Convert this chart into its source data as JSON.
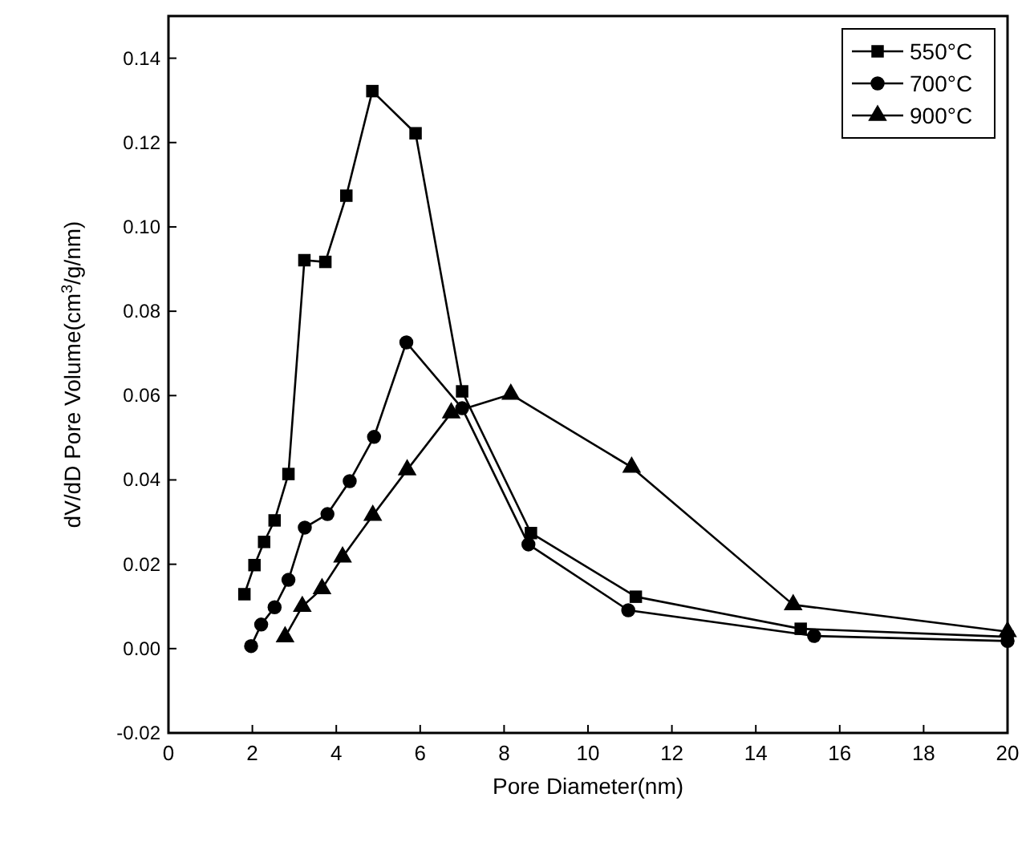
{
  "chart_data": {
    "type": "line",
    "xlabel": "Pore Diameter(nm)",
    "ylabel": "dV/dD Pore Volume(cm$^{3}$/g/nm)",
    "xlim": [
      0,
      20
    ],
    "xticks": [
      0,
      2,
      4,
      6,
      8,
      10,
      12,
      14,
      16,
      18,
      20
    ],
    "ylim": [
      -0.02,
      0.15
    ],
    "yticks": [
      {
        "value": -0.02,
        "label": "-0.02"
      },
      {
        "value": 0,
        "label": "0.00"
      },
      {
        "value": 0.02,
        "label": "0.02"
      },
      {
        "value": 0.04,
        "label": "0.04"
      },
      {
        "value": 0.06,
        "label": "0.06"
      },
      {
        "value": 0.08,
        "label": "0.08"
      },
      {
        "value": 0.1,
        "label": "0.10"
      },
      {
        "value": 0.12,
        "label": "0.12"
      },
      {
        "value": 0.14,
        "label": "0.14"
      }
    ],
    "legend": "top right",
    "grid": false,
    "line_style": "solid",
    "series": [
      {
        "name": "550°C",
        "color": "#000000",
        "marker": "square",
        "x": [
          1.81,
          2.05,
          2.28,
          2.53,
          2.86,
          3.24,
          3.74,
          4.24,
          4.86,
          5.89,
          7.0,
          8.64,
          11.14,
          15.07,
          20
        ],
        "values": [
          0.0129,
          0.0198,
          0.0253,
          0.0304,
          0.0414,
          0.0921,
          0.0917,
          0.1074,
          0.1322,
          0.1222,
          0.061,
          0.0274,
          0.0123,
          0.0047,
          0.0028
        ]
      },
      {
        "name": "700°C",
        "color": "#000000",
        "marker": "circle",
        "x": [
          1.97,
          2.21,
          2.53,
          2.86,
          3.25,
          3.79,
          4.32,
          4.9,
          5.67,
          7.0,
          8.58,
          10.96,
          15.39,
          20
        ],
        "values": [
          0.0006,
          0.0057,
          0.0098,
          0.0163,
          0.0287,
          0.0319,
          0.0397,
          0.0502,
          0.0726,
          0.057,
          0.0247,
          0.0091,
          0.003,
          0.0018
        ]
      },
      {
        "name": "900°C",
        "color": "#000000",
        "marker": "triangle",
        "x": [
          2.78,
          3.19,
          3.66,
          4.15,
          4.87,
          5.69,
          6.74,
          8.16,
          11.04,
          14.89,
          20
        ],
        "values": [
          0.0028,
          0.01,
          0.0142,
          0.0217,
          0.0316,
          0.0424,
          0.0559,
          0.0603,
          0.043,
          0.0104,
          0.004
        ]
      }
    ]
  }
}
